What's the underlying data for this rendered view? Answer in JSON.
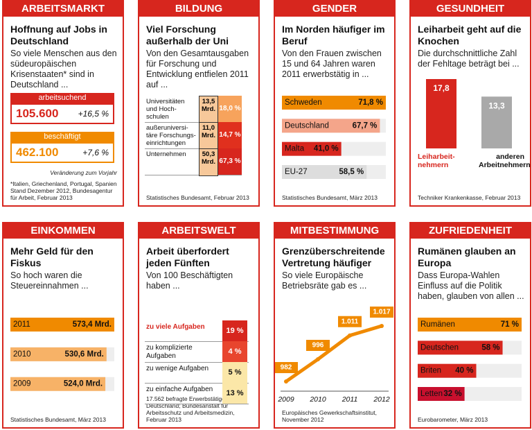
{
  "panels": [
    {
      "header": "ARBEITSMARKT",
      "title": "Hoffnung auf Jobs in Deutschland",
      "subtitle": "So viele Menschen aus den südeuropäischen Krisenstaaten* sind in Deutschland ...",
      "groups": [
        {
          "label": "arbeitsuchend",
          "value": "105.600",
          "change": "+16,5 %",
          "color": "#d7261e"
        },
        {
          "label": "beschäftigt",
          "value": "462.100",
          "change": "+7,6 %",
          "color": "#f08a00"
        }
      ],
      "note": "Veränderung zum Vorjahr",
      "source": "*Italien, Griechenland, Portugal, Spanien Stand Dezember 2012, Bundesagentur für Arbeit, Februar 2013"
    },
    {
      "header": "BILDUNG",
      "title": "Viel Forschung außerhalb der Uni",
      "subtitle": "Von den Gesamtausgaben für Forschung und Entwicklung entfielen 2011 auf ...",
      "table": {
        "rows": [
          [
            "Universitäten und Hoch-schulen",
            "13,5 Mrd.",
            "18,0 %"
          ],
          [
            "außeruniversi-täre Forschungs-einrichtungen",
            "11,0 Mrd.",
            "14,7 %"
          ],
          [
            "Unternehmen",
            "50,3 Mrd.",
            "67,3 %"
          ]
        ],
        "colors": [
          "#f7a35c",
          "#e0301e",
          "#d7261e"
        ]
      },
      "source": "Statistisches Bundesamt, Februar 2013"
    },
    {
      "header": "GENDER",
      "title": "Im Norden häufiger im Beruf",
      "subtitle": "Von den Frauen zwischen 15 und 64 Jahren waren 2011 erwerbstätig in ...",
      "chart": {
        "type": "hbar",
        "categories": [
          "Schweden",
          "Deutschland",
          "Malta",
          "EU-27"
        ],
        "values": [
          71.8,
          67.7,
          41.0,
          58.5
        ],
        "value_labels": [
          "71,8 %",
          "67,7 %",
          "41,0 %",
          "58,5 %"
        ],
        "colors": [
          "#f08a00",
          "#f4a58a",
          "#d7261e",
          "#dddddd"
        ]
      },
      "source": "Statistisches Bundesamt, März 2013"
    },
    {
      "header": "GESUNDHEIT",
      "title": "Leiharbeit geht auf die Knochen",
      "subtitle": "Die durchschnittliche Zahl der Fehltage beträgt bei ...",
      "chart": {
        "type": "vbar",
        "categories": [
          "Leiharbeit-nehmern",
          "anderen Arbeitnehmern"
        ],
        "values": [
          17.8,
          13.3
        ],
        "value_labels": [
          "17,8",
          "13,3"
        ],
        "colors": [
          "#d7261e",
          "#a9a9a9"
        ]
      },
      "source": "Techniker Krankenkasse, Februar 2013"
    },
    {
      "header": "EINKOMMEN",
      "title": "Mehr Geld für den Fiskus",
      "subtitle": "So hoch waren die Steuereinnahmen ...",
      "chart": {
        "type": "hbar",
        "categories": [
          "2011",
          "2010",
          "2009"
        ],
        "values": [
          573.4,
          530.6,
          524.0
        ],
        "value_labels": [
          "573,4 Mrd.",
          "530,6 Mrd.",
          "524,0 Mrd."
        ],
        "colors": [
          "#f08a00",
          "#f7b267",
          "#f7b267"
        ]
      },
      "source": "Statistisches Bundesamt, März 2013"
    },
    {
      "header": "ARBEITSWELT",
      "title": "Arbeit überfordert jeden Fünften",
      "subtitle": "Von 100 Beschäftigten haben ...",
      "table": {
        "rows": [
          [
            "zu viele Aufgaben",
            "19 %"
          ],
          [
            "zu komplizierte Aufgaben",
            "4 %"
          ],
          [
            "zu wenige Aufgaben",
            "5 %"
          ],
          [
            "zu einfache Aufgaben",
            "13 %"
          ]
        ],
        "colors": [
          "#d7261e",
          "#e8452e",
          "#fbe7a8",
          "#fbe7a8"
        ]
      },
      "source": "17.562 befragte Erwerbstätige in Deutschland; Bundesanstalt für Arbeitsschutz und Arbeitsmedizin, Februar 2013"
    },
    {
      "header": "MITBESTIMMUNG",
      "title": "Grenzüberschreitende Vertretung häufiger",
      "subtitle": "So viele Europäische Betriebsräte gab es ...",
      "chart": {
        "type": "line",
        "categories": [
          "2009",
          "2010",
          "2011",
          "2012"
        ],
        "values": [
          982,
          996,
          1011,
          1017
        ],
        "value_labels": [
          "982",
          "996",
          "1.011",
          "1.017"
        ],
        "color": "#f08a00"
      },
      "source": "Europäisches Gewerkschaftsinstitut, November 2012"
    },
    {
      "header": "ZUFRIEDENHEIT",
      "title": "Rumänen glauben an Europa",
      "subtitle": "Dass Europa-Wahlen Einfluss auf die Politik haben, glauben von allen ...",
      "chart": {
        "type": "hbar",
        "categories": [
          "Rumänen",
          "Deutschen",
          "Briten",
          "Letten"
        ],
        "values": [
          71,
          58,
          40,
          32
        ],
        "value_labels": [
          "71 %",
          "58 %",
          "40 %",
          "32 %"
        ],
        "colors": [
          "#f08a00",
          "#d7261e",
          "#d7261e",
          "#c8102e"
        ]
      },
      "source": "Eurobarometer, März 2013"
    }
  ]
}
